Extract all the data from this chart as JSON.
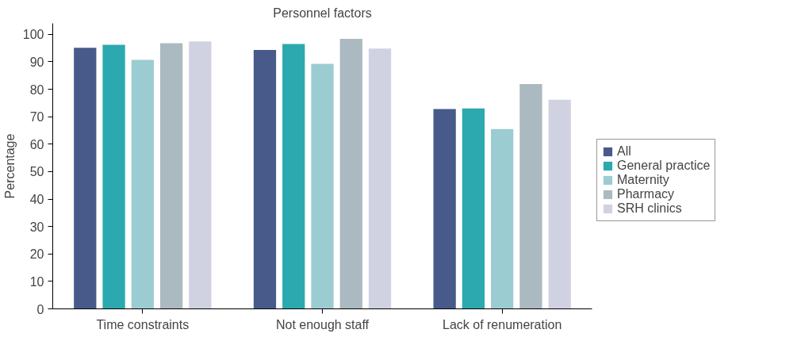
{
  "chart_data": {
    "type": "bar",
    "title": "Personnel factors",
    "ylabel": "Percentage",
    "categories": [
      "Time constraints",
      "Not enough staff",
      "Lack of renumeration"
    ],
    "series": [
      {
        "name": "All",
        "color": "#475a8a",
        "values": [
          95.1,
          94.3,
          72.8
        ]
      },
      {
        "name": "General practice",
        "color": "#2ba9ae",
        "values": [
          96.2,
          96.5,
          73.0
        ]
      },
      {
        "name": "Maternity",
        "color": "#9bccd1",
        "values": [
          90.7,
          89.3,
          65.5
        ]
      },
      {
        "name": "Pharmacy",
        "color": "#abb9c1",
        "values": [
          96.8,
          98.4,
          81.9
        ]
      },
      {
        "name": "SRH clinics",
        "color": "#d0d2e2",
        "values": [
          97.4,
          94.8,
          76.2
        ]
      }
    ],
    "ylim": [
      0,
      104
    ],
    "yticks": [
      0,
      10,
      20,
      30,
      40,
      50,
      60,
      70,
      80,
      90,
      100
    ],
    "grid": false,
    "legend": "right"
  }
}
